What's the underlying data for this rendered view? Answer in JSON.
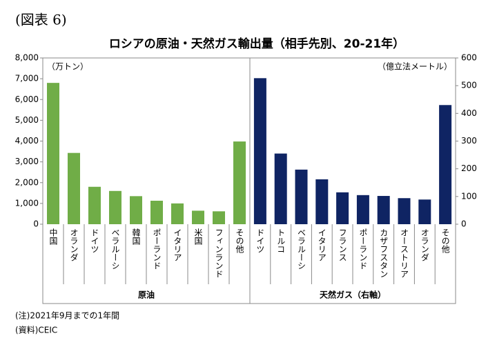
{
  "header": "(図表 6)",
  "title": "ロシアの原油・天然ガス輸出量（相手先別、20-21年）",
  "notes": [
    "(注)2021年9月までの1年間",
    "(資料)CEIC"
  ],
  "chart_data": [
    {
      "type": "bar",
      "group_label": "原油",
      "unit_label": "（万トン）",
      "axis": "y",
      "color": "#70ad47",
      "categories": [
        "中国",
        "オランダ",
        "ドイツ",
        "ベラルーシ",
        "韓国",
        "ポーランド",
        "イタリア",
        "米国",
        "フィンランド",
        "その他"
      ],
      "values": [
        6800,
        3430,
        1800,
        1600,
        1350,
        1130,
        1000,
        650,
        620,
        3980
      ],
      "ylim": [
        0,
        8000
      ],
      "yticks": [
        0,
        {
          "value": 1000,
          "label": "1,000"
        },
        {
          "value": 2000,
          "label": "2,000"
        },
        {
          "value": 3000,
          "label": "3,000"
        },
        {
          "value": 4000,
          "label": "4,000"
        },
        {
          "value": 5000,
          "label": "5,000"
        },
        {
          "value": 6000,
          "label": "6,000"
        },
        {
          "value": 7000,
          "label": "7,000"
        },
        {
          "value": 8000,
          "label": "8,000"
        }
      ]
    },
    {
      "type": "bar",
      "group_label": "天然ガス（右軸）",
      "unit_label": "（億立法メートル）",
      "axis": "y2",
      "color": "#0f2463",
      "categories": [
        "ドイツ",
        "トルコ",
        "ベラルーシ",
        "イタリア",
        "フランス",
        "ポーランド",
        "カザフスタン",
        "オーストリア",
        "オランダ",
        "その他"
      ],
      "values": [
        527,
        255,
        197,
        162,
        115,
        105,
        102,
        94,
        89,
        430
      ],
      "ylim": [
        0,
        600
      ],
      "yticks": [
        0,
        100,
        200,
        300,
        400,
        500,
        600
      ]
    }
  ]
}
